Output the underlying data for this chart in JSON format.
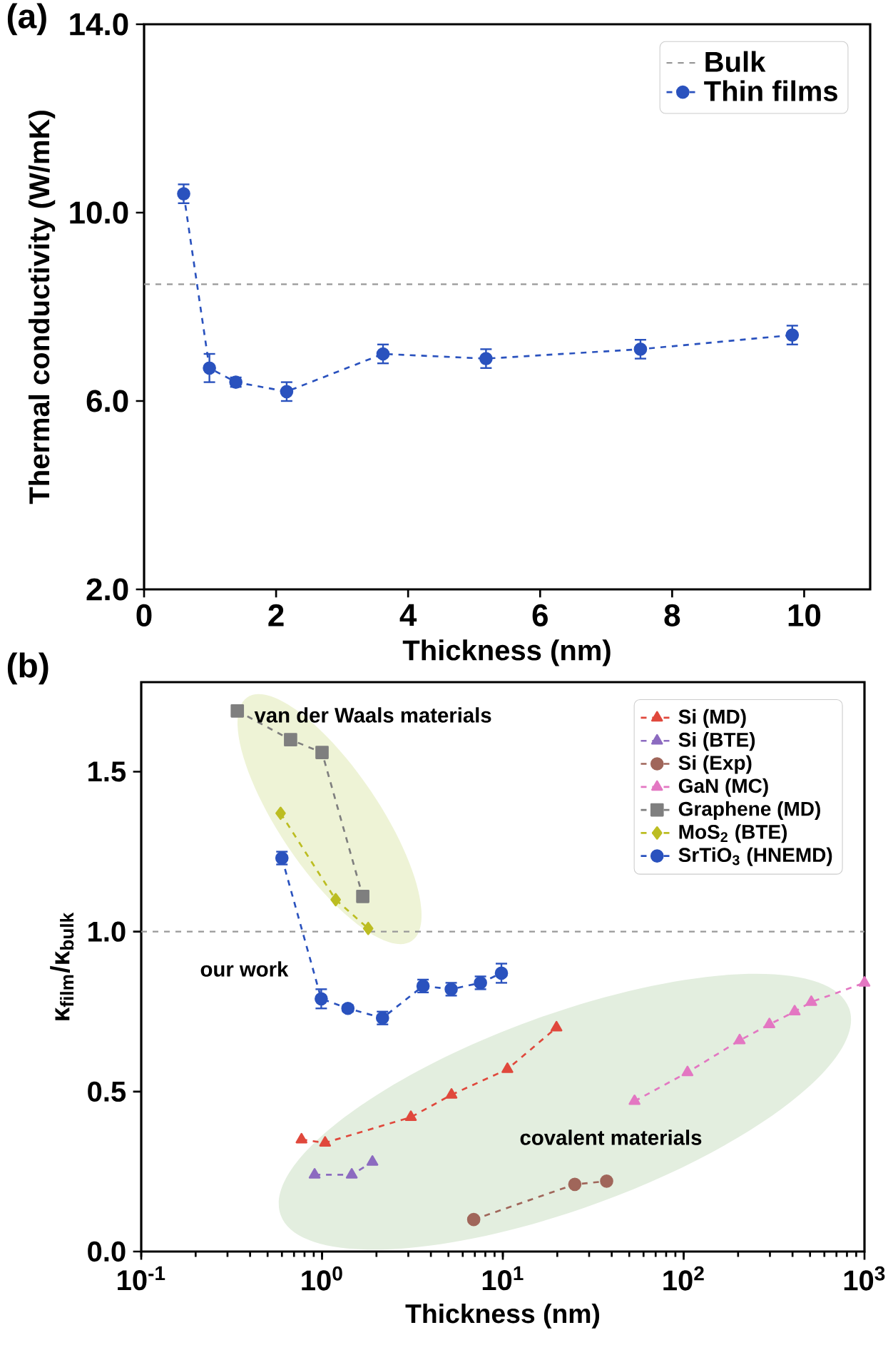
{
  "chart_data": [
    {
      "type": "line",
      "title": "(a)",
      "xlabel": "Thickness (nm)",
      "ylabel": "Thermal conductivity (W/mK)",
      "xlim": [
        0,
        11
      ],
      "xticks": [
        0,
        2,
        4,
        6,
        8,
        10
      ],
      "ylim": [
        2,
        14
      ],
      "yticks": [
        {
          "value": 2,
          "label": "2.0"
        },
        {
          "value": 6,
          "label": "6.0"
        },
        {
          "value": 10,
          "label": "10.0"
        },
        {
          "value": 14,
          "label": "14.0"
        }
      ],
      "legend": "top right",
      "line_style": "dashed",
      "marker": "circle",
      "ref_lines": [
        {
          "axis": "y",
          "value": 8.48,
          "label": "Bulk",
          "color": "#999999",
          "line_style": "dashed"
        }
      ],
      "series": [
        {
          "name": "Thin films",
          "color": "#2a52be",
          "x": [
            0.6,
            0.99,
            1.39,
            2.16,
            3.62,
            5.18,
            7.52,
            9.82
          ],
          "values": [
            10.4,
            6.7,
            6.4,
            6.2,
            7.0,
            6.9,
            7.1,
            7.4
          ],
          "errors": [
            0.2,
            0.3,
            0.1,
            0.2,
            0.2,
            0.2,
            0.2,
            0.2
          ]
        }
      ]
    },
    {
      "type": "line",
      "title": "(b)",
      "xlabel": "Thickness (nm)",
      "ylabel": "κ$_{film}$/κ$_{bulk}$",
      "log": "x",
      "xlim": [
        0.1,
        1000
      ],
      "xticks": [
        {
          "value": 0.1,
          "label": "10$^{-1}$"
        },
        {
          "value": 1,
          "label": "10$^{0}$"
        },
        {
          "value": 10,
          "label": "10$^{1}$"
        },
        {
          "value": 100,
          "label": "10$^{2}$"
        },
        {
          "value": 1000,
          "label": "10$^{3}$"
        }
      ],
      "ylim": [
        0,
        1.78
      ],
      "yticks": [
        {
          "value": 0,
          "label": "0.0"
        },
        {
          "value": 0.5,
          "label": "0.5"
        },
        {
          "value": 1,
          "label": "1.0"
        },
        {
          "value": 1.5,
          "label": "1.5"
        }
      ],
      "legend": "top right",
      "line_style": "dashed",
      "annotations": [
        "van der Waals materials",
        "our work",
        "covalent materials"
      ],
      "ref_lines": [
        {
          "axis": "y",
          "value": 1.0,
          "color": "#999999",
          "line_style": "dashed"
        }
      ],
      "series": [
        {
          "name": "Si (MD)",
          "color": "#e0483c",
          "marker": "triangle",
          "x": [
            0.77,
            1.04,
            3.1,
            5.2,
            10.6,
            19.8
          ],
          "values": [
            0.35,
            0.34,
            0.42,
            0.49,
            0.57,
            0.7
          ]
        },
        {
          "name": "Si (BTE)",
          "color": "#8c6bc0",
          "marker": "triangle",
          "x": [
            0.91,
            1.46,
            1.9
          ],
          "values": [
            0.24,
            0.24,
            0.28
          ]
        },
        {
          "name": "Si (Exp)",
          "color": "#a0665a",
          "marker": "circle",
          "x": [
            6.9,
            25,
            37.5
          ],
          "values": [
            0.1,
            0.21,
            0.22
          ]
        },
        {
          "name": "GaN (MC)",
          "color": "#e377c2",
          "marker": "triangle",
          "x": [
            53.5,
            105,
            204,
            298,
            411,
            508,
            1000
          ],
          "values": [
            0.47,
            0.56,
            0.66,
            0.71,
            0.75,
            0.78,
            0.84
          ]
        },
        {
          "name": "Graphene (MD)",
          "color": "#7f7f7f",
          "marker": "square",
          "x": [
            0.34,
            0.67,
            1.0,
            1.68
          ],
          "values": [
            1.69,
            1.6,
            1.56,
            1.11
          ]
        },
        {
          "name": "MoS$_{2}$ (BTE)",
          "color": "#bcbd22",
          "marker": "diamond",
          "x": [
            0.59,
            1.19,
            1.8
          ],
          "values": [
            1.37,
            1.1,
            1.01
          ]
        },
        {
          "name": "SrTiO$_{3}$ (HNEMD)",
          "color": "#2a52be",
          "marker": "circle",
          "x": [
            0.6,
            0.99,
            1.39,
            2.16,
            3.62,
            5.18,
            7.52,
            9.82
          ],
          "values": [
            1.23,
            0.79,
            0.76,
            0.73,
            0.83,
            0.82,
            0.84,
            0.87
          ],
          "errors": [
            0.02,
            0.03,
            0.01,
            0.02,
            0.02,
            0.02,
            0.02,
            0.03
          ]
        }
      ]
    }
  ]
}
